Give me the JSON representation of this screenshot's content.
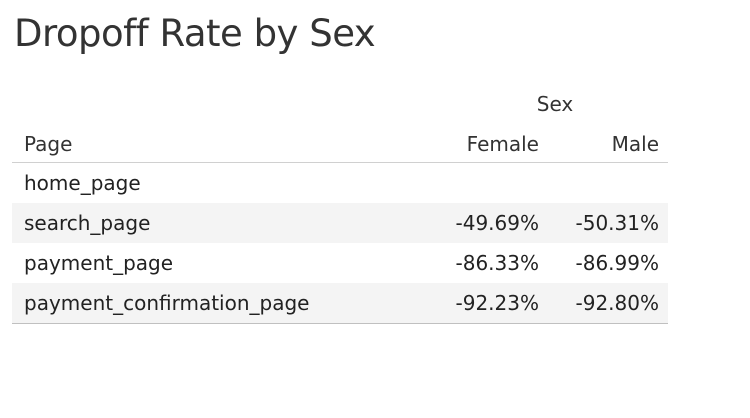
{
  "chart_data": {
    "type": "table",
    "title": "Dropoff Rate by Sex",
    "column_group_label": "Sex",
    "row_header": "Page",
    "columns": [
      "Female",
      "Male"
    ],
    "rows": [
      {
        "page": "home_page",
        "female": "",
        "male": ""
      },
      {
        "page": "search_page",
        "female": "-49.69%",
        "male": "-50.31%"
      },
      {
        "page": "payment_page",
        "female": "-86.33%",
        "male": "-86.99%"
      },
      {
        "page": "payment_confirmation_page",
        "female": "-92.23%",
        "male": "-92.80%"
      }
    ],
    "values": {
      "Female": [
        null,
        -49.69,
        -86.33,
        -92.23
      ],
      "Male": [
        null,
        -50.31,
        -86.99,
        -92.8
      ]
    }
  }
}
